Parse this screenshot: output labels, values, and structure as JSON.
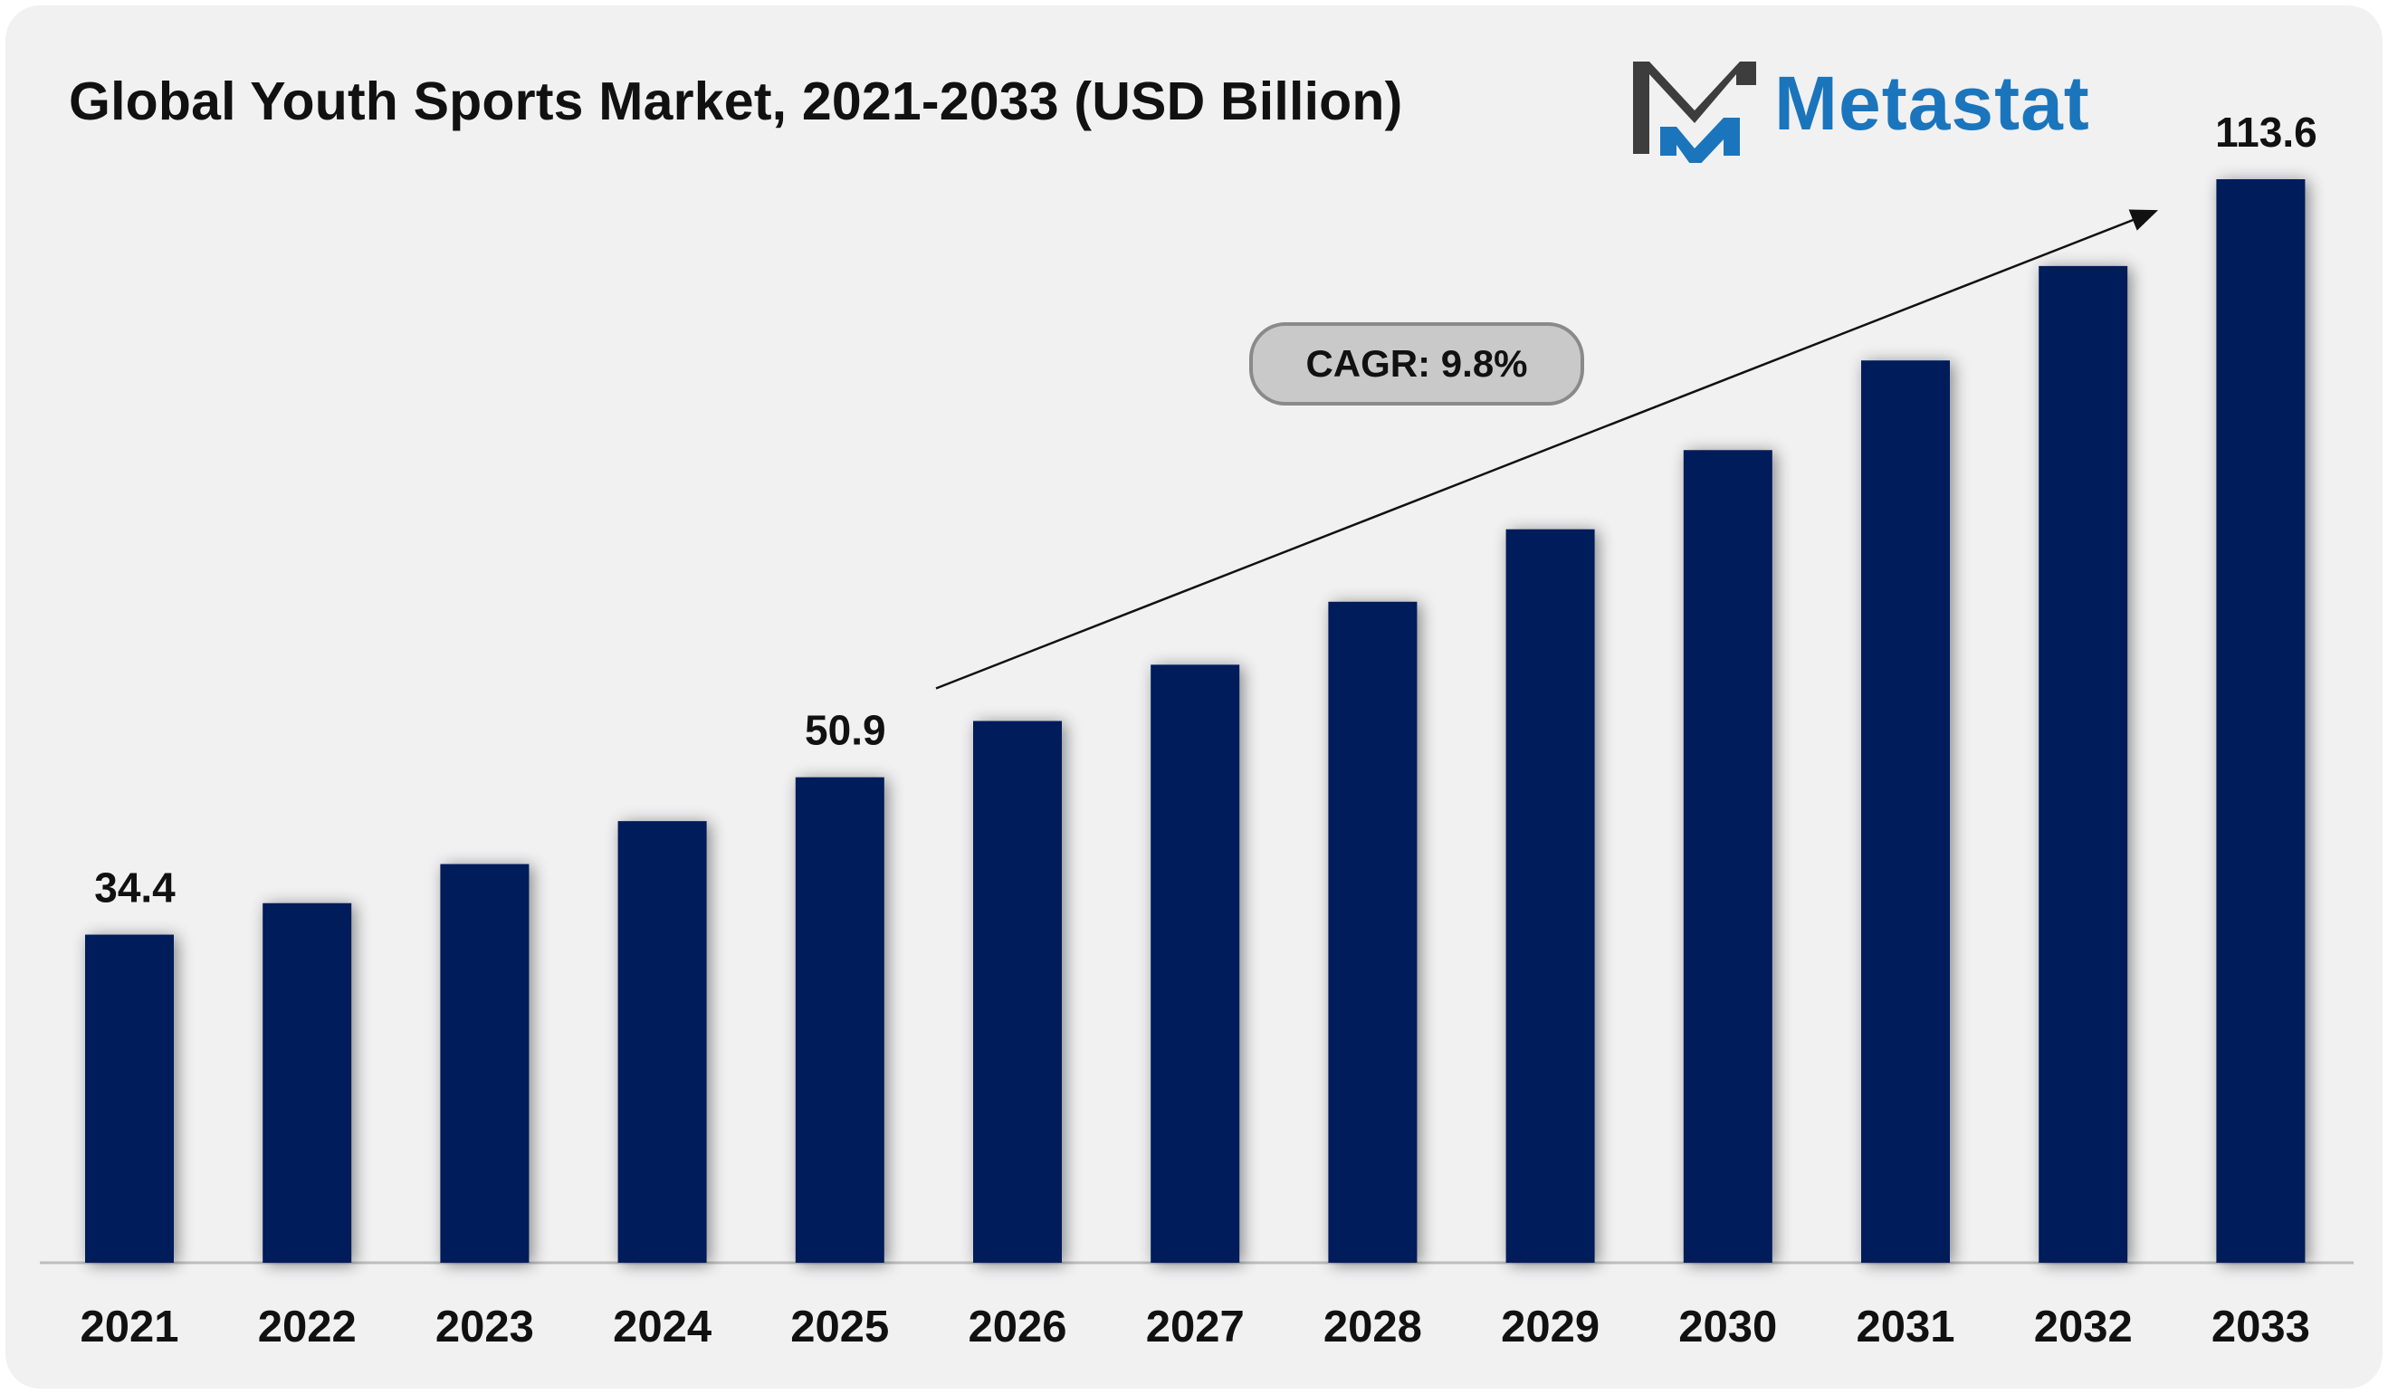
{
  "header": {
    "title": "Global Youth Sports Market, 2021-2033 (USD Billion)"
  },
  "brand": {
    "name": "Metastat",
    "logo_dark": "#3d3d3d",
    "logo_blue": "#1b75bc"
  },
  "annotation": {
    "cagr": "CAGR: 9.8%"
  },
  "colors": {
    "bar": "#021d5a",
    "background": "#f1f1f2",
    "axis": "#bdbdbd"
  },
  "chart_data": {
    "type": "bar",
    "title": "Global Youth Sports Market, 2021-2033 (USD Billion)",
    "xlabel": "",
    "ylabel": "",
    "categories": [
      "2021",
      "2022",
      "2023",
      "2024",
      "2025",
      "2026",
      "2027",
      "2028",
      "2029",
      "2030",
      "2031",
      "2032",
      "2033"
    ],
    "values": [
      34.4,
      37.7,
      41.8,
      46.3,
      50.9,
      56.8,
      62.7,
      69.3,
      76.9,
      85.2,
      94.6,
      104.5,
      113.6
    ],
    "data_labels": [
      {
        "category": "2021",
        "text": "34.4"
      },
      {
        "category": "2025",
        "text": "50.9"
      },
      {
        "category": "2033",
        "text": "113.6"
      }
    ],
    "ylim": [
      0,
      113.6
    ],
    "grid": false,
    "legend": "none",
    "trend_arrow": {
      "from": "2026",
      "to": "2033"
    }
  }
}
